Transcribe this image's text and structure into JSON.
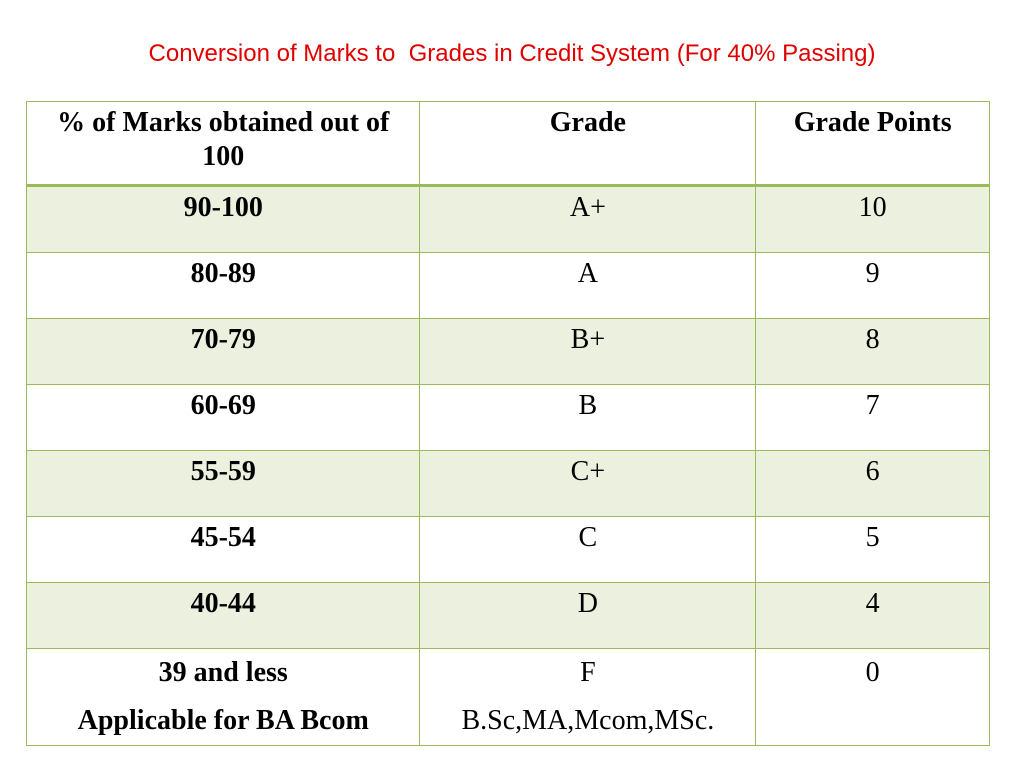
{
  "title": "Conversion of Marks to  Grades in Credit System (For 40% Passing)",
  "table": {
    "headers": [
      "% of Marks obtained out of  100",
      "Grade",
      "Grade Points"
    ],
    "rows": [
      {
        "range": "90-100",
        "grade": "A+",
        "points": "10"
      },
      {
        "range": "80-89",
        "grade": "A",
        "points": "9"
      },
      {
        "range": "70-79",
        "grade": "B+",
        "points": "8"
      },
      {
        "range": "60-69",
        "grade": "B",
        "points": "7"
      },
      {
        "range": "55-59",
        "grade": "C+",
        "points": "6"
      },
      {
        "range": "45-54",
        "grade": "C",
        "points": "5"
      },
      {
        "range": "40-44",
        "grade": "D",
        "points": "4"
      },
      {
        "range": "39 and less",
        "range_note": "Applicable for BA Bcom",
        "grade": "F",
        "grade_note": "B.Sc,MA,Mcom,MSc.",
        "points": "0"
      }
    ]
  },
  "colors": {
    "title": "#e00000",
    "border": "#9bbb59",
    "band_fill": "#ebf1de"
  }
}
